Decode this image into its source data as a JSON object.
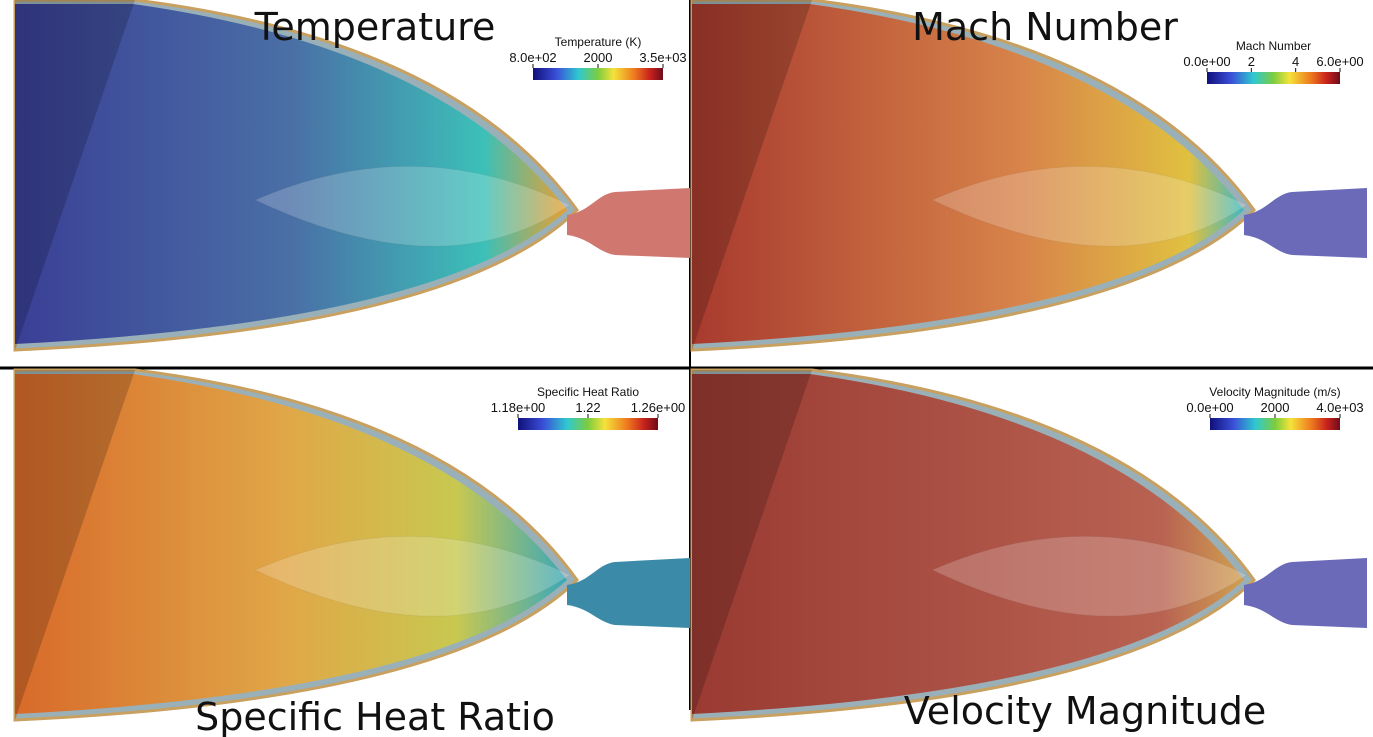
{
  "panels": [
    {
      "title": "Temperature",
      "colorbar": {
        "title": "Temperature (K)",
        "ticks": [
          "8.0e+02",
          "2000",
          "3.5e+03"
        ]
      }
    },
    {
      "title": "Mach Number",
      "colorbar": {
        "title": "Mach Number",
        "ticks": [
          "0.0e+00",
          "2",
          "4",
          "6.0e+00"
        ]
      }
    },
    {
      "title": "Specific Heat Ratio",
      "colorbar": {
        "title": "Specific Heat Ratio",
        "ticks": [
          "1.18e+00",
          "1.22",
          "1.26e+00"
        ]
      }
    },
    {
      "title": "Velocity Magnitude",
      "colorbar": {
        "title": "Velocity Magnitude (m/s)",
        "ticks": [
          "0.0e+00",
          "2000",
          "4.0e+03"
        ]
      }
    }
  ]
}
